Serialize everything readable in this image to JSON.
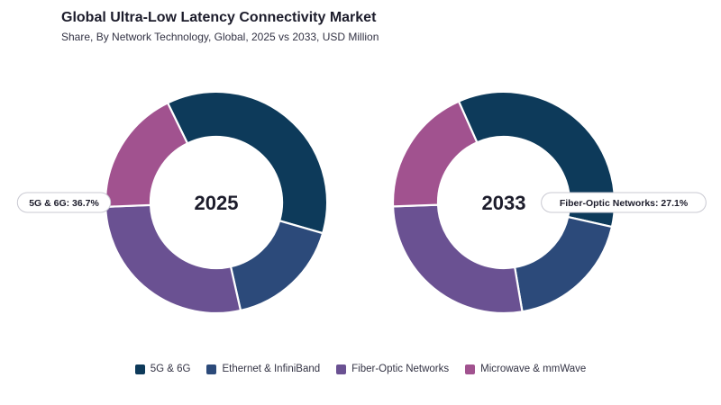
{
  "header": {
    "title": "Global Ultra-Low Latency Connectivity Market",
    "subtitle": "Share, By Network Technology, Global, 2025 vs 2033, USD Million"
  },
  "colors": {
    "5G & 6G": "#0d3a5a",
    "Ethernet & InfiniBand": "#2c4a7a",
    "Fiber-Optic Networks": "#6a5192",
    "Microwave & mmWave": "#a1528f"
  },
  "chart_data": [
    {
      "type": "pie",
      "variant": "donut",
      "center_label": "2025",
      "categories": [
        "5G & 6G",
        "Ethernet & InfiniBand",
        "Fiber-Optic Networks",
        "Microwave & mmWave"
      ],
      "values": [
        36.7,
        17.0,
        27.9,
        18.4
      ],
      "unit": "%",
      "callout": {
        "text": "5G & 6G: 36.7%",
        "category": "5G & 6G"
      }
    },
    {
      "type": "pie",
      "variant": "donut",
      "center_label": "2033",
      "categories": [
        "5G & 6G",
        "Ethernet & InfiniBand",
        "Fiber-Optic Networks",
        "Microwave & mmWave"
      ],
      "values": [
        35.2,
        18.8,
        27.1,
        18.9
      ],
      "unit": "%",
      "callout": {
        "text": "Fiber-Optic Networks: 27.1%",
        "category": "Fiber-Optic Networks"
      }
    }
  ],
  "legend": {
    "position": "bottom",
    "items": [
      "5G & 6G",
      "Ethernet & InfiniBand",
      "Fiber-Optic Networks",
      "Microwave & mmWave"
    ]
  }
}
